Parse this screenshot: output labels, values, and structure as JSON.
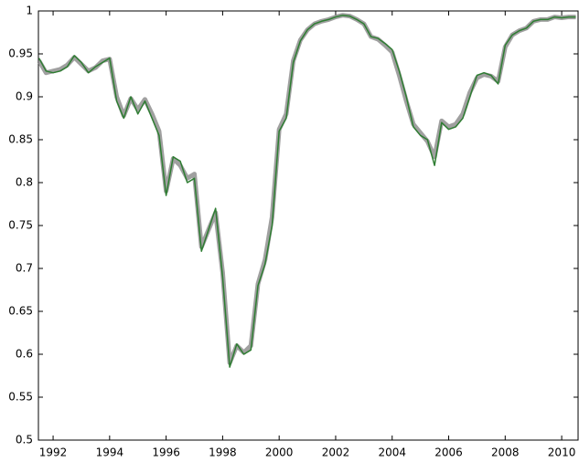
{
  "chart_data": {
    "type": "line",
    "x": [
      1991.5,
      1991.75,
      1992,
      1992.25,
      1992.5,
      1992.75,
      1993,
      1993.25,
      1993.5,
      1993.75,
      1994,
      1994.25,
      1994.5,
      1994.75,
      1995,
      1995.25,
      1995.5,
      1995.75,
      1996,
      1996.25,
      1996.5,
      1996.75,
      1997,
      1997.25,
      1997.5,
      1997.75,
      1998,
      1998.25,
      1998.5,
      1998.75,
      1999,
      1999.25,
      1999.5,
      1999.75,
      2000,
      2000.25,
      2000.5,
      2000.75,
      2001,
      2001.25,
      2001.5,
      2001.75,
      2002,
      2002.25,
      2002.5,
      2002.75,
      2003,
      2003.25,
      2003.5,
      2003.75,
      2004,
      2004.25,
      2004.5,
      2004.75,
      2005,
      2005.25,
      2005.5,
      2005.75,
      2006,
      2006.25,
      2006.5,
      2006.75,
      2007,
      2007.25,
      2007.5,
      2007.75,
      2008,
      2008.25,
      2008.5,
      2008.75,
      2009,
      2009.25,
      2009.5,
      2009.75,
      2010,
      2010.25,
      2010.5
    ],
    "series": [
      {
        "color": "#808080",
        "values": [
          0.942,
          0.928,
          0.93,
          0.932,
          0.937,
          0.946,
          0.938,
          0.93,
          0.934,
          0.942,
          0.944,
          0.9,
          0.878,
          0.898,
          0.885,
          0.897,
          0.88,
          0.86,
          0.79,
          0.828,
          0.82,
          0.805,
          0.81,
          0.725,
          0.745,
          0.765,
          0.695,
          0.59,
          0.61,
          0.602,
          0.61,
          0.682,
          0.71,
          0.76,
          0.862,
          0.88,
          0.942,
          0.966,
          0.978,
          0.985,
          0.988,
          0.99,
          0.993,
          0.995,
          0.994,
          0.99,
          0.985,
          0.97,
          0.967,
          0.96,
          0.952,
          0.925,
          0.895,
          0.868,
          0.858,
          0.848,
          0.83,
          0.872,
          0.865,
          0.868,
          0.88,
          0.905,
          0.922,
          0.926,
          0.924,
          0.918,
          0.958,
          0.972,
          0.977,
          0.98,
          0.988,
          0.99,
          0.99,
          0.993,
          0.992,
          0.993,
          0.993
        ]
      },
      {
        "color": "#2e7d32",
        "values": [
          0.945,
          0.93,
          0.928,
          0.93,
          0.935,
          0.948,
          0.94,
          0.928,
          0.935,
          0.94,
          0.945,
          0.895,
          0.875,
          0.9,
          0.88,
          0.895,
          0.875,
          0.855,
          0.785,
          0.83,
          0.825,
          0.8,
          0.805,
          0.72,
          0.745,
          0.77,
          0.69,
          0.585,
          0.612,
          0.6,
          0.605,
          0.68,
          0.705,
          0.75,
          0.86,
          0.875,
          0.94,
          0.965,
          0.978,
          0.985,
          0.988,
          0.99,
          0.993,
          0.995,
          0.994,
          0.99,
          0.985,
          0.97,
          0.968,
          0.962,
          0.955,
          0.93,
          0.9,
          0.865,
          0.855,
          0.85,
          0.82,
          0.87,
          0.862,
          0.865,
          0.875,
          0.9,
          0.925,
          0.928,
          0.925,
          0.915,
          0.96,
          0.972,
          0.977,
          0.98,
          0.988,
          0.99,
          0.99,
          0.993,
          0.992,
          0.993,
          0.993
        ]
      }
    ],
    "xlim": [
      1991.48,
      2010.58
    ],
    "xticks": [
      1992,
      1994,
      1996,
      1998,
      2000,
      2002,
      2004,
      2006,
      2008,
      2010
    ],
    "ylim": [
      0.5,
      1
    ],
    "yticks": [
      0.5,
      0.55,
      0.6,
      0.65,
      0.7,
      0.75,
      0.8,
      0.85,
      0.9,
      0.95,
      1
    ]
  }
}
